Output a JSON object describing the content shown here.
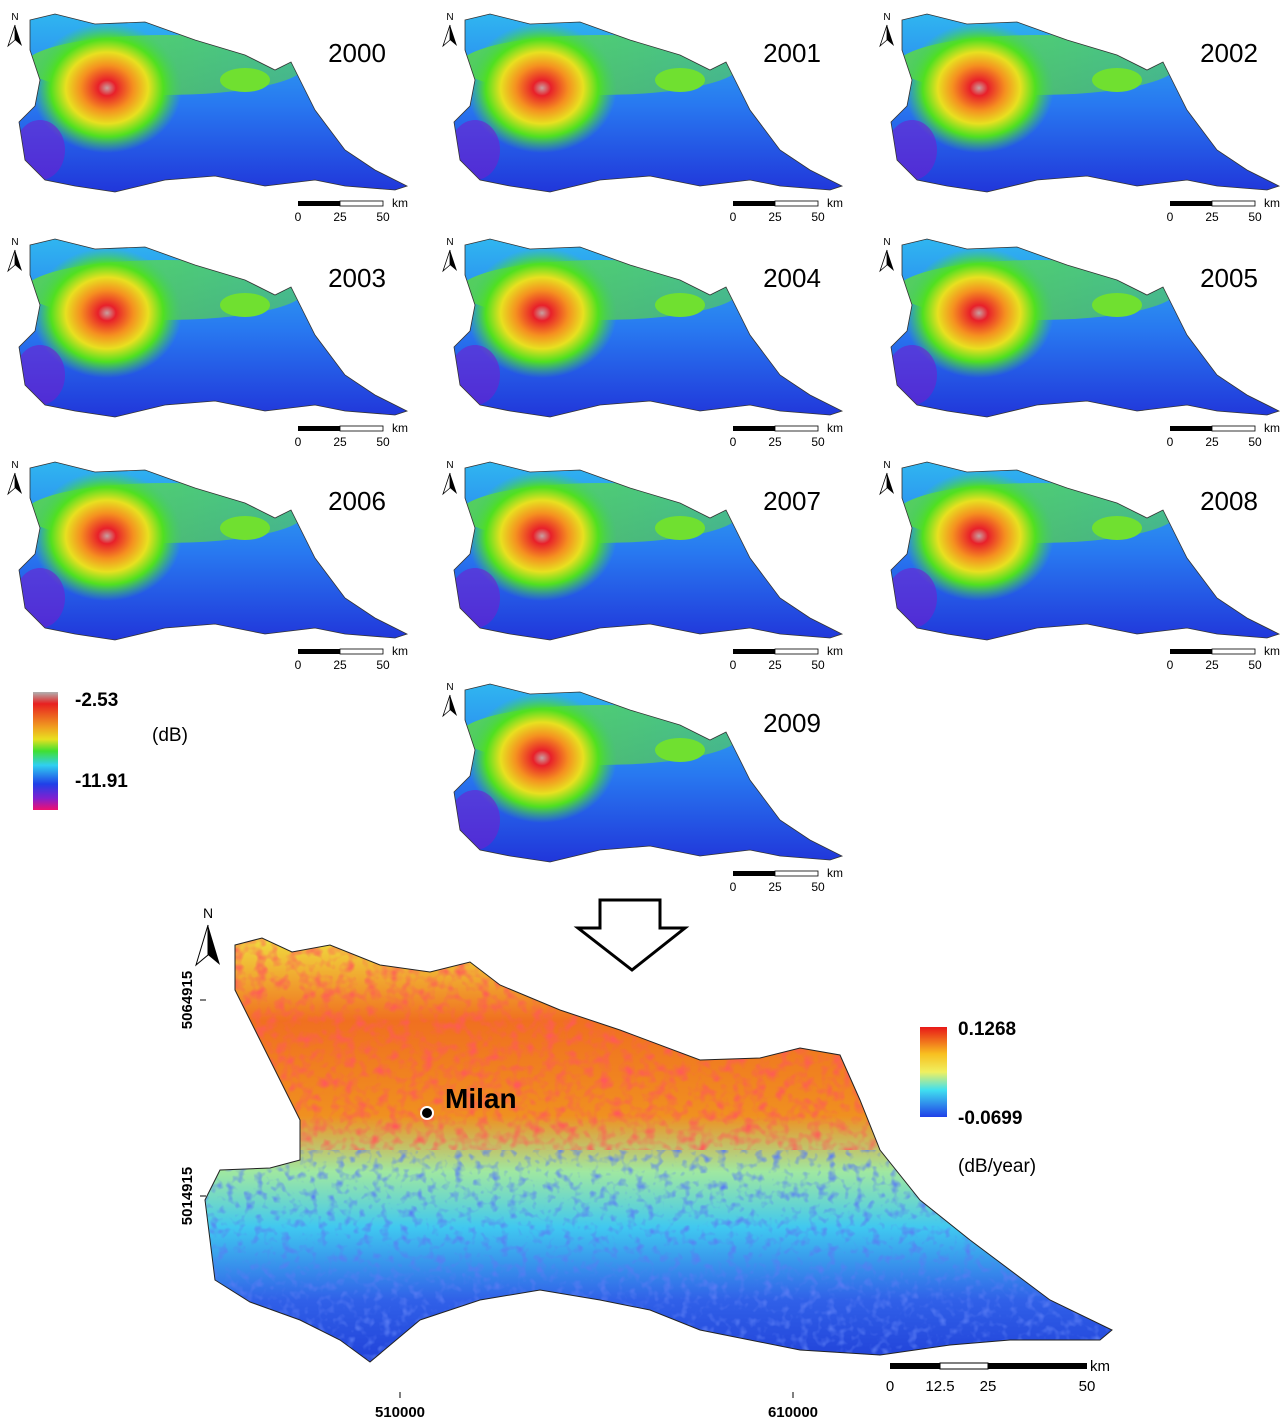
{
  "panels": [
    {
      "year": "2000"
    },
    {
      "year": "2001"
    },
    {
      "year": "2002"
    },
    {
      "year": "2003"
    },
    {
      "year": "2004"
    },
    {
      "year": "2005"
    },
    {
      "year": "2006"
    },
    {
      "year": "2007"
    },
    {
      "year": "2008"
    },
    {
      "year": "2009"
    }
  ],
  "north": "N",
  "small_scale": {
    "labels": [
      "0",
      "25",
      "50"
    ],
    "unit": "km"
  },
  "legend_annual": {
    "max": "-2.53",
    "min": "-11.91",
    "unit": "(dB)"
  },
  "trend_map": {
    "city": "Milan",
    "legend": {
      "max": "0.1268",
      "min": "-0.0699",
      "unit": "(dB/year)"
    },
    "y_coords": [
      "5064915",
      "5014915"
    ],
    "x_coords": [
      "510000",
      "610000"
    ],
    "scale": {
      "labels": [
        "0",
        "12.5",
        "25",
        "50"
      ],
      "unit": "km"
    }
  }
}
